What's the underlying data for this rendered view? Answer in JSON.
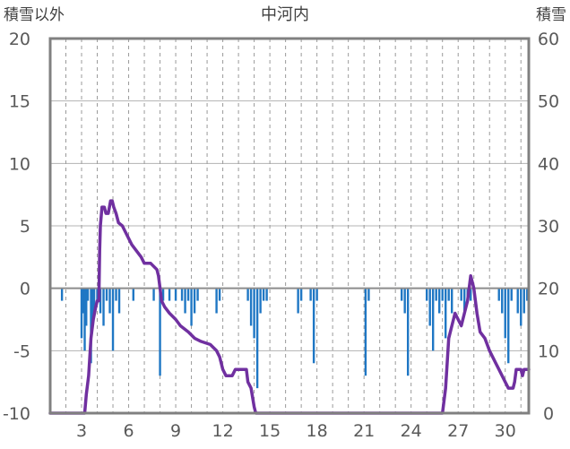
{
  "chart_data": {
    "type": "bar+line",
    "title": "中河内",
    "left_axis_label": "積雪以外",
    "right_axis_label": "積雪",
    "left_ylim": [
      -10,
      20
    ],
    "left_yticks": [
      20,
      15,
      10,
      5,
      0,
      -5,
      -10
    ],
    "right_ylim": [
      0,
      60
    ],
    "right_yticks": [
      60,
      50,
      40,
      30,
      20,
      10,
      0
    ],
    "xlim": [
      1,
      31.5
    ],
    "xticks": [
      3,
      6,
      9,
      12,
      15,
      18,
      21,
      24,
      27,
      30
    ],
    "grid": "horizontal solid, vertical dashed per day",
    "bars": {
      "color": "#1f77c4",
      "points": [
        [
          1.75,
          -1.0
        ],
        [
          3.0,
          -4.0
        ],
        [
          3.1,
          -2.0
        ],
        [
          3.2,
          -5.0
        ],
        [
          3.3,
          -3.0
        ],
        [
          3.4,
          -1.0
        ],
        [
          3.6,
          -6.0
        ],
        [
          3.7,
          -3.0
        ],
        [
          3.8,
          -2.0
        ],
        [
          4.0,
          -1.0
        ],
        [
          4.2,
          -2.0
        ],
        [
          4.4,
          -3.0
        ],
        [
          4.6,
          -1.0
        ],
        [
          4.8,
          -2.0
        ],
        [
          5.0,
          -5.0
        ],
        [
          5.2,
          -1.0
        ],
        [
          5.4,
          -2.0
        ],
        [
          6.3,
          -1.0
        ],
        [
          7.6,
          -1.0
        ],
        [
          8.0,
          -7.0
        ],
        [
          8.2,
          -1.0
        ],
        [
          8.6,
          -1.0
        ],
        [
          9.0,
          -1.0
        ],
        [
          9.4,
          -1.0
        ],
        [
          9.6,
          -2.0
        ],
        [
          9.8,
          -1.0
        ],
        [
          10.0,
          -3.0
        ],
        [
          10.2,
          -2.0
        ],
        [
          10.4,
          -1.0
        ],
        [
          11.6,
          -2.0
        ],
        [
          11.8,
          -1.0
        ],
        [
          13.6,
          -1.0
        ],
        [
          13.8,
          -3.0
        ],
        [
          14.0,
          -4.0
        ],
        [
          14.2,
          -8.0
        ],
        [
          14.4,
          -2.0
        ],
        [
          14.6,
          -1.0
        ],
        [
          14.8,
          -1.0
        ],
        [
          16.8,
          -2.0
        ],
        [
          17.0,
          -1.0
        ],
        [
          17.6,
          -1.0
        ],
        [
          17.8,
          -6.0
        ],
        [
          18.0,
          -1.0
        ],
        [
          21.1,
          -7.0
        ],
        [
          21.3,
          -1.0
        ],
        [
          23.4,
          -1.0
        ],
        [
          23.6,
          -2.0
        ],
        [
          23.8,
          -7.0
        ],
        [
          25.0,
          -1.0
        ],
        [
          25.2,
          -3.0
        ],
        [
          25.4,
          -5.0
        ],
        [
          25.6,
          -1.0
        ],
        [
          25.8,
          -2.0
        ],
        [
          26.0,
          -1.0
        ],
        [
          26.2,
          -4.0
        ],
        [
          26.4,
          -1.0
        ],
        [
          26.6,
          -2.0
        ],
        [
          27.2,
          -1.0
        ],
        [
          27.4,
          -2.0
        ],
        [
          27.6,
          -1.0
        ],
        [
          27.8,
          -1.0
        ],
        [
          29.6,
          -1.0
        ],
        [
          29.8,
          -2.0
        ],
        [
          30.0,
          -4.0
        ],
        [
          30.2,
          -6.0
        ],
        [
          30.4,
          -1.0
        ],
        [
          30.8,
          -2.0
        ],
        [
          31.0,
          -3.0
        ],
        [
          31.2,
          -2.0
        ],
        [
          31.4,
          -1.0
        ]
      ]
    },
    "snow_line": {
      "color": "#7030a0",
      "axis": "right",
      "points": [
        [
          1.0,
          0
        ],
        [
          3.2,
          0
        ],
        [
          3.3,
          3
        ],
        [
          3.45,
          6
        ],
        [
          3.6,
          12
        ],
        [
          3.75,
          15
        ],
        [
          3.9,
          17
        ],
        [
          4.0,
          18
        ],
        [
          4.1,
          18
        ],
        [
          4.15,
          26
        ],
        [
          4.2,
          30
        ],
        [
          4.3,
          33
        ],
        [
          4.45,
          33
        ],
        [
          4.55,
          32
        ],
        [
          4.7,
          32
        ],
        [
          4.85,
          34
        ],
        [
          4.95,
          34
        ],
        [
          5.05,
          33
        ],
        [
          5.2,
          32
        ],
        [
          5.35,
          30.5
        ],
        [
          5.6,
          30
        ],
        [
          5.8,
          29
        ],
        [
          6.0,
          28
        ],
        [
          6.2,
          27
        ],
        [
          6.5,
          26
        ],
        [
          6.8,
          25
        ],
        [
          7.0,
          24
        ],
        [
          7.4,
          24
        ],
        [
          7.8,
          23
        ],
        [
          7.9,
          22
        ],
        [
          8.0,
          20
        ],
        [
          8.1,
          18
        ],
        [
          8.3,
          17
        ],
        [
          8.6,
          16
        ],
        [
          9.0,
          15
        ],
        [
          9.3,
          14
        ],
        [
          9.8,
          13
        ],
        [
          10.2,
          12
        ],
        [
          10.6,
          11.5
        ],
        [
          11.2,
          11
        ],
        [
          11.6,
          10
        ],
        [
          11.8,
          9
        ],
        [
          12.0,
          7
        ],
        [
          12.2,
          6
        ],
        [
          12.6,
          6
        ],
        [
          12.8,
          7
        ],
        [
          13.2,
          7
        ],
        [
          13.5,
          7
        ],
        [
          13.6,
          5
        ],
        [
          13.8,
          4
        ],
        [
          14.0,
          1
        ],
        [
          14.1,
          0
        ],
        [
          26.0,
          0
        ],
        [
          26.2,
          4
        ],
        [
          26.4,
          12
        ],
        [
          26.6,
          14
        ],
        [
          26.8,
          16
        ],
        [
          27.0,
          15
        ],
        [
          27.2,
          14
        ],
        [
          27.4,
          16
        ],
        [
          27.6,
          18
        ],
        [
          27.8,
          22
        ],
        [
          28.0,
          20
        ],
        [
          28.2,
          16
        ],
        [
          28.4,
          13
        ],
        [
          28.7,
          12
        ],
        [
          29.0,
          10
        ],
        [
          29.4,
          8
        ],
        [
          29.6,
          7
        ],
        [
          29.8,
          6
        ],
        [
          30.0,
          5
        ],
        [
          30.2,
          4
        ],
        [
          30.5,
          4
        ],
        [
          30.6,
          5
        ],
        [
          30.7,
          7
        ],
        [
          31.0,
          7
        ],
        [
          31.1,
          6
        ],
        [
          31.2,
          7
        ],
        [
          31.5,
          7
        ]
      ]
    }
  }
}
